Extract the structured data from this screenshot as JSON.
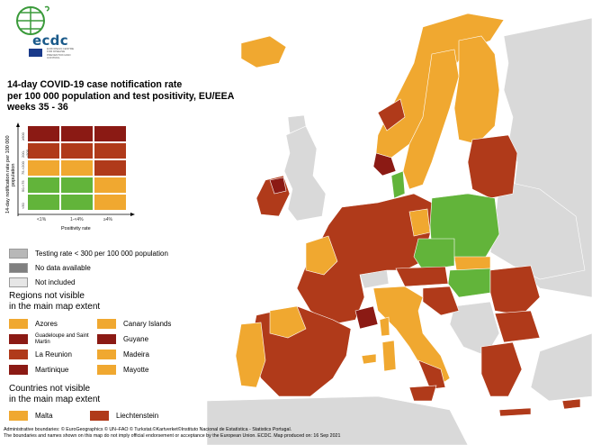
{
  "colors": {
    "sea": "#ffffff",
    "non_eu": "#d9d9d9",
    "dark_red": "#8b1a14",
    "red": "#b03a1a",
    "orange": "#f0a830",
    "green": "#62b43a",
    "grey_testing": "#b8b8b8",
    "grey_nodata": "#808080",
    "grey_notincluded": "#e6e6e6"
  },
  "logo": {
    "name": "ecdc",
    "subtitle": "EUROPEAN CENTRE FOR DISEASE PREVENTION AND CONTROL"
  },
  "title": {
    "line1": "14-day COVID-19 case notification rate",
    "line2": "per 100 000 population and test positivity, EU/EEA",
    "line3": "weeks 35 - 36"
  },
  "matrix": {
    "y_axis_label": "14-day notification rate per 100 000 population",
    "x_axis_label": "Positivity rate",
    "x_ticks": [
      "<1%",
      "1-<4%",
      "≥4%"
    ],
    "y_ticks": [
      "<50",
      "50-<75",
      "75-<200",
      "200-<500",
      "≥500"
    ],
    "rows": [
      [
        "dark_red",
        "dark_red",
        "dark_red"
      ],
      [
        "red",
        "red",
        "red"
      ],
      [
        "orange",
        "orange",
        "red"
      ],
      [
        "green",
        "green",
        "orange"
      ],
      [
        "green",
        "green",
        "orange"
      ]
    ]
  },
  "legend": {
    "testing_rate": "Testing rate < 300 per 100 000 population",
    "no_data": "No data available",
    "not_included": "Not included"
  },
  "regions_title": {
    "line1": "Regions not visible",
    "line2": "in the main map extent"
  },
  "regions": [
    {
      "label": "Azores",
      "color": "orange"
    },
    {
      "label": "Canary Islands",
      "color": "orange"
    },
    {
      "label": "Guadeloupe and Saint Martin",
      "color": "dark_red"
    },
    {
      "label": "Guyane",
      "color": "dark_red"
    },
    {
      "label": "La Reunion",
      "color": "red"
    },
    {
      "label": "Madeira",
      "color": "orange"
    },
    {
      "label": "Martinique",
      "color": "dark_red"
    },
    {
      "label": "Mayotte",
      "color": "orange"
    }
  ],
  "countries_title": {
    "line1": "Countries not visible",
    "line2": "in the main map extent"
  },
  "countries": [
    {
      "label": "Malta",
      "color": "orange"
    },
    {
      "label": "Liechtenstein",
      "color": "red"
    }
  ],
  "footer": {
    "line1": "Administrative boundaries: © EuroGeographics © UN–FAO © Turkstat.©Kartverket©Instituto Nacional de Estatística - Statistics Portugal.",
    "line2": "The boundaries and names shown on this map do not imply official endorsement or acceptance by the European Union. ECDC. Map produced on: 16 Sep 2021"
  }
}
